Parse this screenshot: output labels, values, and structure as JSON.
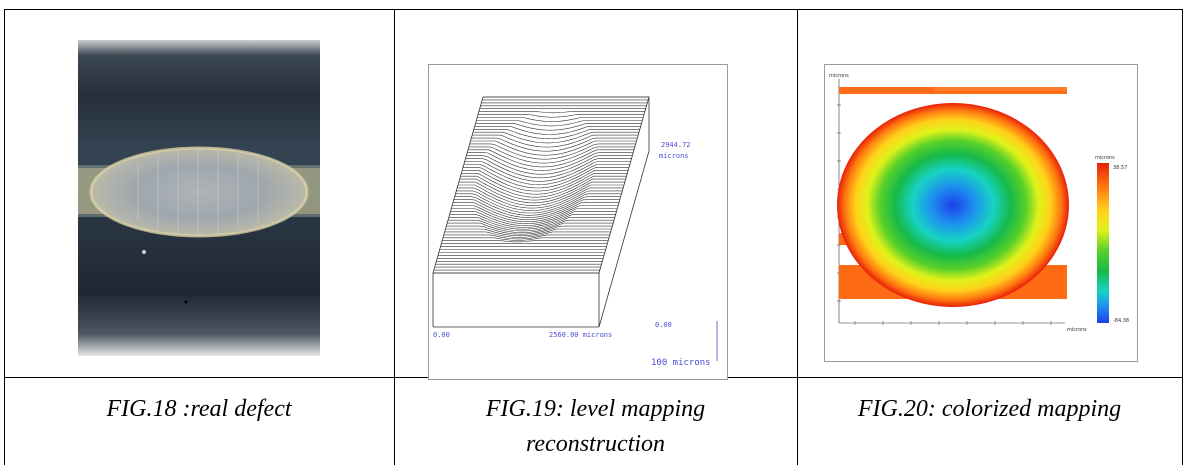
{
  "captions": {
    "fig18": "FIG.18 :real defect",
    "fig19_line1": "FIG.19: level mapping",
    "fig19_line2": "reconstruction",
    "fig20": "FIG.20: colorized mapping"
  },
  "fig19": {
    "height_value": "2944.72",
    "height_unit": "microns",
    "x_start": "0.00",
    "x_end": "2560.00 microns",
    "z_start": "0.00",
    "scale": "100 microns"
  },
  "fig20": {
    "y_unit": "microns",
    "x_unit": "microns",
    "legend_unit": "microns",
    "legend_max": "38.57",
    "legend_min": "-84.38",
    "colors": [
      "#e8200a",
      "#ff7a10",
      "#ffd21a",
      "#dff21a",
      "#57d02a",
      "#16b94a",
      "#17d3c4",
      "#1d8ef0",
      "#1e3fe8"
    ]
  }
}
